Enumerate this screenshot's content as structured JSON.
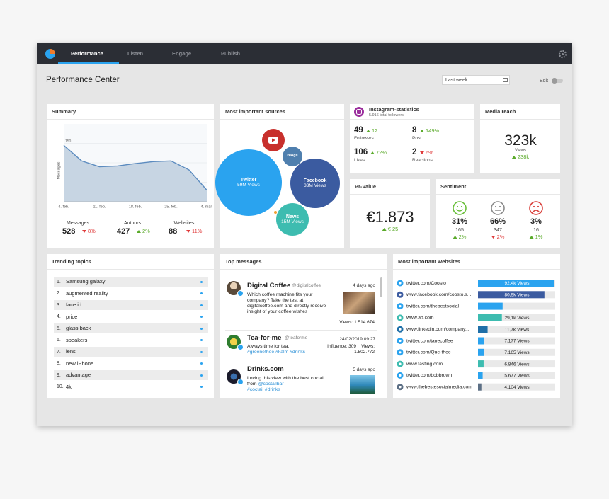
{
  "nav": {
    "tabs": [
      "Performance",
      "Listen",
      "Engage",
      "Publish"
    ]
  },
  "header": {
    "title": "Performance Center",
    "date": "Last week",
    "edit": "Edit"
  },
  "chart_data": [
    {
      "type": "line",
      "title": "Summary",
      "y_label": "Messages",
      "categories": [
        "4. feb.",
        null,
        "11. feb.",
        null,
        "18. feb.",
        null,
        "25. feb.",
        null,
        "4. mar."
      ],
      "values": [
        145,
        105,
        90,
        92,
        98,
        103,
        105,
        82,
        30
      ],
      "color": "#5b8bbf",
      "ylim": [
        0,
        160
      ],
      "yticks": [
        0,
        50,
        100,
        150
      ],
      "grid": true
    },
    {
      "type": "hbar",
      "title": "Most important websites",
      "categories": [
        "twitter.com/Coosto",
        "www.facebook.com/coosto.s...",
        "twitter.com/thebestsocial",
        "www.ad.com",
        "www.linkedin.com/company...",
        "twitter.com/janecoffee",
        "twitter.com/Que-thee",
        "www.tasting.com",
        "twitter.com/bobbrown",
        "www.thebestesocialmedia.com"
      ],
      "values": [
        92400,
        80900,
        30000,
        29100,
        11700,
        7177,
        7165,
        6846,
        5677,
        4104
      ],
      "value_labels": [
        "92,4k Views",
        "80,9k Views",
        null,
        "29,1k Views",
        "11,7k Views",
        "7.177 Views",
        "7.165 Views",
        "6.846 Views",
        "5.677 Views",
        "4.104 Views"
      ],
      "colors": [
        "#2aa3ef",
        "#3b5ba0",
        "#2aa3ef",
        "#3dbcb0",
        "#1f6fa8",
        "#2aa3ef",
        "#2aa3ef",
        "#3dbcb0",
        "#2aa3ef",
        "#5c6f85"
      ],
      "xlim": [
        0,
        94000
      ]
    }
  ],
  "summary": {
    "stats": [
      {
        "label": "Messages",
        "value": "528",
        "change": "8%",
        "dir": "down"
      },
      {
        "label": "Authors",
        "value": "427",
        "change": "2%",
        "dir": "up"
      },
      {
        "label": "Websites",
        "value": "88",
        "change": "11%",
        "dir": "down"
      }
    ]
  },
  "sources": {
    "title": "Most important sources",
    "bubbles": [
      {
        "name": "Twitter",
        "views": "59M Views",
        "color": "#2aa3ef"
      },
      {
        "name": "Facebook",
        "views": "33M Views",
        "color": "#3b5ba0"
      },
      {
        "name": "News",
        "views": "15M Views",
        "color": "#3dbcb0"
      },
      {
        "name": "Blogs",
        "color": "#4f7fae"
      }
    ]
  },
  "instagram": {
    "title": "Instagram-statistics",
    "subtitle": "5.916 total followers",
    "stats": [
      {
        "value": "49",
        "label": "Followers",
        "change": "12",
        "dir": "up"
      },
      {
        "value": "8",
        "label": "Post",
        "change": "149%",
        "dir": "up"
      },
      {
        "value": "106",
        "label": "Likes",
        "change": "72%",
        "dir": "up"
      },
      {
        "value": "2",
        "label": "Reactions",
        "change": "6%",
        "dir": "down"
      }
    ]
  },
  "media_reach": {
    "title": "Media reach",
    "value": "323k",
    "label": "Views",
    "change": "238k",
    "dir": "up"
  },
  "pr_value": {
    "title": "Pr-Value",
    "value": "€1.873",
    "change": "€ 25",
    "dir": "up"
  },
  "sentiment": {
    "title": "Sentiment",
    "items": [
      {
        "percent": "31%",
        "count": "165",
        "change": "2%",
        "dir": "up",
        "color": "#6abf3b"
      },
      {
        "percent": "66%",
        "count": "347",
        "change": "2%",
        "dir": "down",
        "color": "#8a8a8a"
      },
      {
        "percent": "3%",
        "count": "16",
        "change": "1%",
        "dir": "up",
        "color": "#d9403b"
      }
    ]
  },
  "trending": {
    "title": "Trending topics",
    "items": [
      {
        "rank": "1.",
        "topic": "Samsung galaxy"
      },
      {
        "rank": "2.",
        "topic": "augmented reality"
      },
      {
        "rank": "3.",
        "topic": "face id"
      },
      {
        "rank": "4.",
        "topic": "price"
      },
      {
        "rank": "5.",
        "topic": "glass back"
      },
      {
        "rank": "6.",
        "topic": "speakers"
      },
      {
        "rank": "7.",
        "topic": "lens"
      },
      {
        "rank": "8.",
        "topic": "new iPhone"
      },
      {
        "rank": "9.",
        "topic": "advantage"
      },
      {
        "rank": "10.",
        "topic": "4k"
      }
    ]
  },
  "messages": {
    "title": "Top messages",
    "items": [
      {
        "name": "Digital Coffee",
        "handle": "@digitalcoffee",
        "time": "4 days ago",
        "text": "Which coffee machine fits your company? Take the test at digitalcoffee.com and directly receive insight of your coffee wishes",
        "views": "Views: 1.514.674"
      },
      {
        "name": "Tea-for-me",
        "handle": "@teaforme",
        "time": "24/02/2019 09:27",
        "text": "Always time for tea.",
        "tags": "#groenethee #kalm #drinks",
        "influence": "Influence: 309",
        "views_label": "Views:",
        "views": "1.502.772"
      },
      {
        "name": "Drinks.com",
        "time": "5 days ago",
        "text": "Loving this view with the best coctail from",
        "mention": "@coctailbar",
        "tags": "#coctail #drinks"
      }
    ]
  }
}
